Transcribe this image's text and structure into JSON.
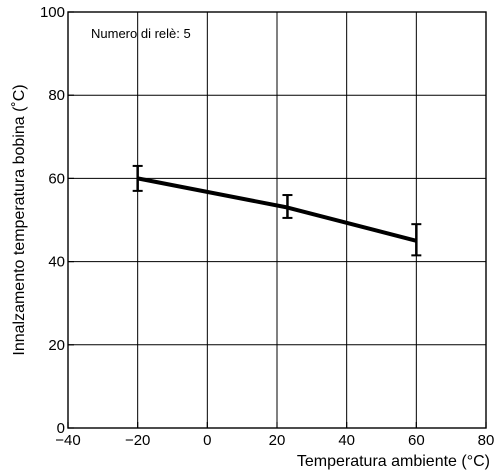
{
  "chart_data": {
    "type": "line",
    "xlabel": "Temperatura ambiente (°C)",
    "ylabel": "Innalzamento temperatura bobina (˚C)",
    "xlim": [
      -40,
      80
    ],
    "ylim": [
      0,
      100
    ],
    "x_ticks": [
      -40,
      -20,
      0,
      20,
      40,
      60,
      80
    ],
    "x_tick_labels": [
      "−40",
      "−20",
      "0",
      "20",
      "40",
      "60",
      "80"
    ],
    "y_ticks": [
      0,
      20,
      40,
      60,
      80,
      100
    ],
    "y_tick_labels": [
      "0",
      "20",
      "40",
      "60",
      "80",
      "100"
    ],
    "grid": true,
    "annotation": "Numero di relè: 5",
    "series": [
      {
        "x": [
          -20,
          23,
          60
        ],
        "y": [
          60,
          53,
          45
        ],
        "y_min": [
          57,
          50.5,
          41.5
        ],
        "y_max": [
          63,
          56,
          49
        ]
      }
    ]
  }
}
